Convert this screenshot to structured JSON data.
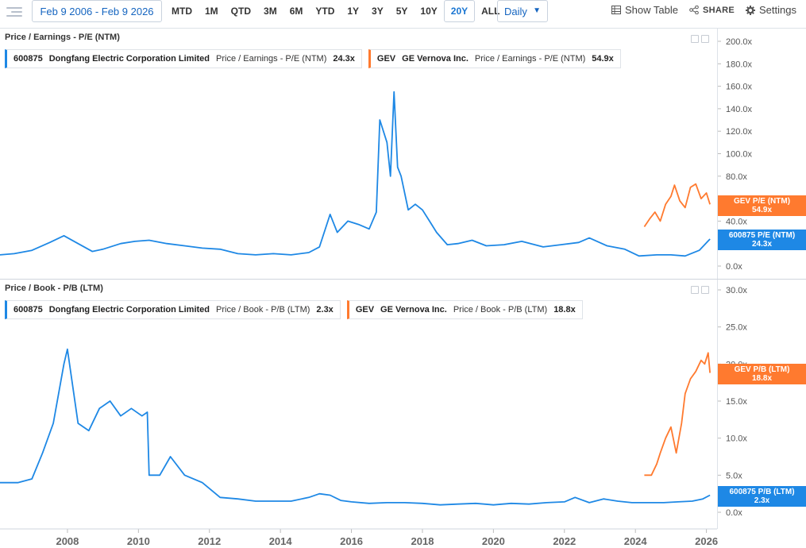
{
  "toolbar": {
    "date_range": "Feb 9 2006 - Feb 9 2026",
    "periods": [
      "MTD",
      "1M",
      "QTD",
      "3M",
      "6M",
      "YTD",
      "1Y",
      "3Y",
      "5Y",
      "10Y",
      "20Y",
      "ALL"
    ],
    "active_period": "20Y",
    "interval": "Daily",
    "show_table": "Show Table",
    "share": "SHARE",
    "settings": "Settings"
  },
  "colors": {
    "blue": "#1e88e5",
    "orange": "#ff7a2f"
  },
  "top_panel": {
    "title": "Price / Earnings - P/E (NTM)",
    "legend": [
      {
        "ticker": "600875",
        "company": "Dongfang Electric Corporation Limited",
        "metric": "Price / Earnings - P/E (NTM)",
        "value": "24.3x"
      },
      {
        "ticker": "GEV",
        "company": "GE Vernova Inc.",
        "metric": "Price / Earnings - P/E (NTM)",
        "value": "54.9x"
      }
    ],
    "tags": [
      {
        "line1": "GEV P/E (NTM)",
        "line2": "54.9x"
      },
      {
        "line1": "600875 P/E (NTM)",
        "line2": "24.3x"
      }
    ]
  },
  "bottom_panel": {
    "title": "Price / Book - P/B (LTM)",
    "legend": [
      {
        "ticker": "600875",
        "company": "Dongfang Electric Corporation Limited",
        "metric": "Price / Book - P/B (LTM)",
        "value": "2.3x"
      },
      {
        "ticker": "GEV",
        "company": "GE Vernova Inc.",
        "metric": "Price / Book - P/B (LTM)",
        "value": "18.8x"
      }
    ],
    "tags": [
      {
        "line1": "GEV P/B (LTM)",
        "line2": "18.8x"
      },
      {
        "line1": "600875 P/B (LTM)",
        "line2": "2.3x"
      }
    ]
  },
  "chart_data": [
    {
      "type": "line",
      "title": "Price / Earnings - P/E (NTM)",
      "ylim": [
        0,
        200
      ],
      "yticks": [
        "200.0x",
        "180.0x",
        "160.0x",
        "140.0x",
        "120.0x",
        "100.0x",
        "80.0x",
        "60.0x",
        "40.0x",
        "20.0x",
        "0.0x"
      ],
      "ytick_values": [
        200,
        180,
        160,
        140,
        120,
        100,
        80,
        60,
        40,
        20,
        0
      ],
      "xlim": [
        2006.1,
        2026.3
      ],
      "series": [
        {
          "name": "600875 Dongfang Electric Corporation Limited",
          "color": "#1e88e5",
          "x": [
            2006.1,
            2006.5,
            2007.0,
            2007.5,
            2007.9,
            2008.3,
            2008.7,
            2009.0,
            2009.5,
            2009.9,
            2010.3,
            2010.8,
            2011.3,
            2011.8,
            2012.3,
            2012.8,
            2013.3,
            2013.8,
            2014.3,
            2014.8,
            2015.1,
            2015.4,
            2015.6,
            2015.9,
            2016.2,
            2016.5,
            2016.7,
            2016.8,
            2017.0,
            2017.1,
            2017.2,
            2017.3,
            2017.4,
            2017.6,
            2017.8,
            2018.0,
            2018.2,
            2018.4,
            2018.7,
            2019.0,
            2019.4,
            2019.8,
            2020.3,
            2020.8,
            2021.4,
            2021.9,
            2022.4,
            2022.7,
            2023.2,
            2023.7,
            2024.1,
            2024.6,
            2025.0,
            2025.4,
            2025.8,
            2026.1
          ],
          "y": [
            10,
            11,
            14,
            21,
            27,
            20,
            13,
            15,
            20,
            22,
            23,
            20,
            18,
            16,
            15,
            11,
            10,
            11,
            10,
            12,
            17,
            46,
            30,
            40,
            37,
            33,
            48,
            130,
            110,
            80,
            155,
            88,
            80,
            50,
            55,
            50,
            40,
            30,
            19,
            20,
            23,
            18,
            19,
            22,
            17,
            19,
            21,
            25,
            18,
            15,
            9,
            10,
            10,
            9,
            14,
            24
          ]
        },
        {
          "name": "GEV GE Vernova Inc.",
          "color": "#ff7a2f",
          "x": [
            2024.25,
            2024.4,
            2024.55,
            2024.7,
            2024.85,
            2025.0,
            2025.1,
            2025.25,
            2025.4,
            2025.55,
            2025.7,
            2025.85,
            2026.0,
            2026.1
          ],
          "y": [
            35,
            42,
            48,
            40,
            55,
            62,
            72,
            58,
            52,
            70,
            73,
            60,
            65,
            54.9
          ]
        }
      ]
    },
    {
      "type": "line",
      "title": "Price / Book - P/B (LTM)",
      "ylim": [
        0,
        30
      ],
      "yticks": [
        "30.0x",
        "25.0x",
        "20.0x",
        "15.0x",
        "10.0x",
        "5.0x",
        "0.0x"
      ],
      "ytick_values": [
        30,
        25,
        20,
        15,
        10,
        5,
        0
      ],
      "xlim": [
        2006.1,
        2026.3
      ],
      "xticks": [
        "2008",
        "2010",
        "2012",
        "2014",
        "2016",
        "2018",
        "2020",
        "2022",
        "2024",
        "2026"
      ],
      "xtick_values": [
        2008,
        2010,
        2012,
        2014,
        2016,
        2018,
        2020,
        2022,
        2024,
        2026
      ],
      "series": [
        {
          "name": "600875 Dongfang Electric Corporation Limited",
          "color": "#1e88e5",
          "x": [
            2006.1,
            2006.6,
            2007.0,
            2007.3,
            2007.6,
            2007.9,
            2008.0,
            2008.3,
            2008.6,
            2008.9,
            2009.2,
            2009.5,
            2009.8,
            2010.1,
            2010.25,
            2010.3,
            2010.6,
            2010.9,
            2011.3,
            2011.8,
            2012.3,
            2012.8,
            2013.3,
            2013.8,
            2014.3,
            2014.8,
            2015.1,
            2015.4,
            2015.7,
            2016.0,
            2016.5,
            2017.0,
            2017.5,
            2018.0,
            2018.5,
            2019.0,
            2019.5,
            2020.0,
            2020.5,
            2021.0,
            2021.5,
            2022.0,
            2022.3,
            2022.7,
            2023.1,
            2023.5,
            2023.9,
            2024.3,
            2024.8,
            2025.2,
            2025.6,
            2025.9,
            2026.1
          ],
          "y": [
            4,
            4,
            4.5,
            8,
            12,
            20,
            22,
            12,
            11,
            14,
            15,
            13,
            14,
            13,
            13.5,
            5,
            5,
            7.5,
            5,
            4,
            2,
            1.8,
            1.5,
            1.5,
            1.5,
            2,
            2.5,
            2.3,
            1.6,
            1.4,
            1.2,
            1.3,
            1.3,
            1.2,
            1.0,
            1.1,
            1.2,
            1.0,
            1.2,
            1.1,
            1.3,
            1.4,
            2.0,
            1.3,
            1.8,
            1.5,
            1.3,
            1.3,
            1.3,
            1.4,
            1.5,
            1.8,
            2.3
          ]
        },
        {
          "name": "GEV GE Vernova Inc.",
          "color": "#ff7a2f",
          "x": [
            2024.25,
            2024.45,
            2024.6,
            2024.7,
            2024.85,
            2025.0,
            2025.15,
            2025.3,
            2025.4,
            2025.55,
            2025.7,
            2025.85,
            2025.95,
            2026.05,
            2026.1
          ],
          "y": [
            5,
            5,
            6.5,
            8,
            10,
            11.5,
            8,
            12,
            16,
            18,
            19,
            20.5,
            20,
            21.5,
            18.8
          ]
        }
      ]
    }
  ]
}
